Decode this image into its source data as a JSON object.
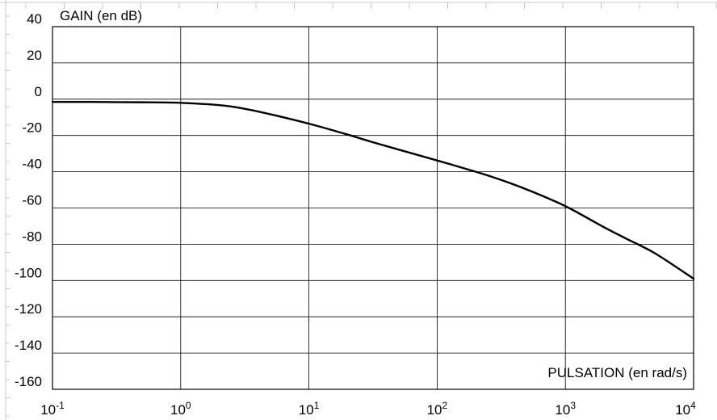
{
  "chart_data": {
    "type": "line",
    "title": "",
    "ylabel": "GAIN (en dB)",
    "xlabel": "PULSATION (en rad/s)",
    "x_scale": "log",
    "xlim": [
      0.1,
      10000
    ],
    "ylim": [
      -160,
      40
    ],
    "grid": true,
    "x_ticks": [
      {
        "value": 0.1,
        "base": "10",
        "exp": "-1"
      },
      {
        "value": 1,
        "base": "10",
        "exp": "0"
      },
      {
        "value": 10,
        "base": "10",
        "exp": "1"
      },
      {
        "value": 100,
        "base": "10",
        "exp": "2"
      },
      {
        "value": 1000,
        "base": "10",
        "exp": "3"
      },
      {
        "value": 10000,
        "base": "10",
        "exp": "4"
      }
    ],
    "y_ticks": [
      {
        "value": 40,
        "label": "40"
      },
      {
        "value": 20,
        "label": "20"
      },
      {
        "value": 0,
        "label": "0"
      },
      {
        "value": -20,
        "label": "-20"
      },
      {
        "value": -40,
        "label": "-40"
      },
      {
        "value": -60,
        "label": "-60"
      },
      {
        "value": -80,
        "label": "-80"
      },
      {
        "value": -100,
        "label": "-100"
      },
      {
        "value": -120,
        "label": "-120"
      },
      {
        "value": -140,
        "label": "-140"
      },
      {
        "value": -160,
        "label": "-160"
      }
    ],
    "series": [
      {
        "color": "#000000",
        "x": [
          0.1,
          0.2,
          0.3,
          0.5,
          1,
          2,
          3,
          5,
          10,
          20,
          30,
          50,
          100,
          200,
          300,
          500,
          1000,
          2000,
          3000,
          5000,
          10000
        ],
        "y": [
          -1.5,
          -1.5,
          -1.6,
          -1.7,
          -2.0,
          -3.3,
          -5.0,
          -8.3,
          -13.5,
          -19.5,
          -23.3,
          -27.8,
          -33.8,
          -40.0,
          -44.0,
          -49.8,
          -59.0,
          -70.6,
          -77.0,
          -85.0,
          -99.0
        ]
      }
    ]
  }
}
